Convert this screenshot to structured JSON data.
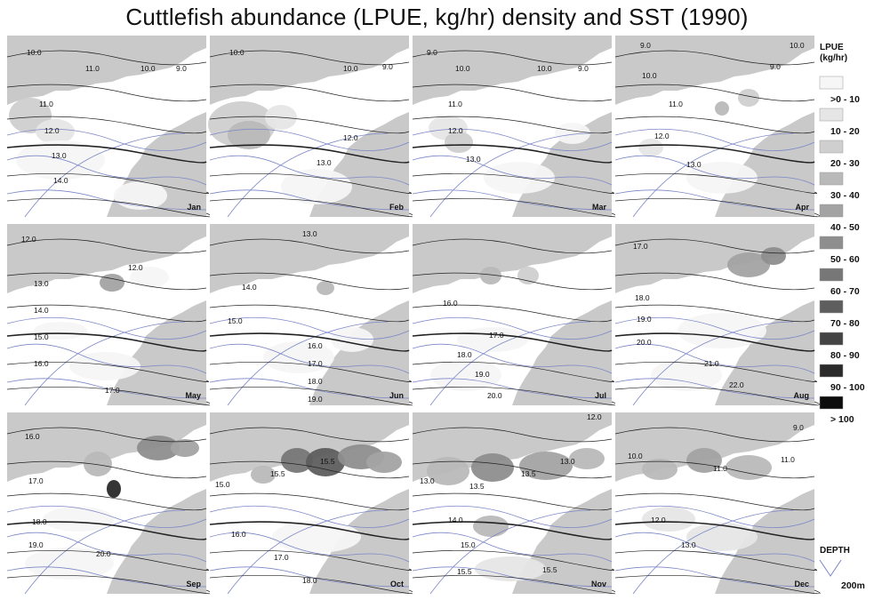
{
  "title": "Cuttlefish abundance (LPUE, kg/hr) density  and SST (1990)",
  "colors": {
    "land": "#c9c9c9",
    "sea": "#ffffff",
    "isotherm": "#222222",
    "isotherm_bold": "#000000",
    "depth_line": "#7b86c6"
  },
  "panels": [
    {
      "month": "Jan",
      "sst_labels": [
        "10.0",
        "11.0",
        "10.0",
        "9.0",
        "11.0",
        "12.0",
        "13.0",
        "14.0"
      ]
    },
    {
      "month": "Feb",
      "sst_labels": [
        "10.0",
        "10.0",
        "9.0",
        "12.0",
        "13.0"
      ]
    },
    {
      "month": "Mar",
      "sst_labels": [
        "9.0",
        "10.0",
        "10.0",
        "9.0",
        "11.0",
        "12.0",
        "13.0"
      ]
    },
    {
      "month": "Apr",
      "sst_labels": [
        "9.0",
        "10.0",
        "10.0",
        "9.0",
        "11.0",
        "12.0",
        "13.0"
      ]
    },
    {
      "month": "May",
      "sst_labels": [
        "12.0",
        "12.0",
        "13.0",
        "14.0",
        "15.0",
        "16.0",
        "17.0"
      ]
    },
    {
      "month": "Jun",
      "sst_labels": [
        "13.0",
        "14.0",
        "15.0",
        "16.0",
        "17.0",
        "18.0",
        "19.0"
      ]
    },
    {
      "month": "Jul",
      "sst_labels": [
        "16.0",
        "17.0",
        "18.0",
        "19.0",
        "20.0"
      ]
    },
    {
      "month": "Aug",
      "sst_labels": [
        "17.0",
        "18.0",
        "19.0",
        "20.0",
        "21.0",
        "22.0"
      ]
    },
    {
      "month": "Sep",
      "sst_labels": [
        "16.0",
        "17.0",
        "18.0",
        "19.0",
        "20.0"
      ]
    },
    {
      "month": "Oct",
      "sst_labels": [
        "15.0",
        "15.5",
        "15.5",
        "16.0",
        "17.0",
        "18.0"
      ]
    },
    {
      "month": "Nov",
      "sst_labels": [
        "12.0",
        "13.0",
        "13.5",
        "13.5",
        "13.0",
        "14.0",
        "15.0",
        "15.5",
        "15.5"
      ]
    },
    {
      "month": "Dec",
      "sst_labels": [
        "9.0",
        "10.0",
        "11.0",
        "11.0",
        "12.0",
        "13.0"
      ]
    }
  ],
  "legend": {
    "title_line1": "LPUE",
    "title_line2": "(kg/hr)",
    "classes": [
      {
        "label": ">0 - 10",
        "color": "#f6f6f6"
      },
      {
        "label": "10 - 20",
        "color": "#e6e6e6"
      },
      {
        "label": "20 - 30",
        "color": "#cfcfcf"
      },
      {
        "label": "30 - 40",
        "color": "#b9b9b9"
      },
      {
        "label": "40 - 50",
        "color": "#a3a3a3"
      },
      {
        "label": "50 - 60",
        "color": "#8e8e8e"
      },
      {
        "label": "60 - 70",
        "color": "#777777"
      },
      {
        "label": "70 - 80",
        "color": "#5e5e5e"
      },
      {
        "label": "80 - 90",
        "color": "#444444"
      },
      {
        "label": "90 - 100",
        "color": "#2a2a2a"
      },
      {
        "label": "> 100",
        "color": "#0c0c0c"
      }
    ],
    "depth_title": "DEPTH",
    "depth_label": "200m"
  }
}
